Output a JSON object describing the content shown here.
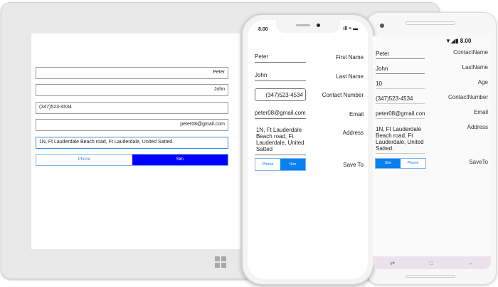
{
  "windows": {
    "fields": [
      "Peter",
      "John",
      "(347)523-4534",
      "peter08@gmail.com",
      "1N, Ft Lauderdale Beach road, Ft Lauderdale, United Satted."
    ],
    "save_to": {
      "options": [
        "Phone",
        "Sim"
      ],
      "selected": "Sim"
    },
    "accent": "#0000ff"
  },
  "ios": {
    "time": "8.00",
    "rows": [
      {
        "label": "First Name",
        "value": "Peter"
      },
      {
        "label": "Last Name",
        "value": "John"
      },
      {
        "label": "Contact Number",
        "value": "(347)523-4534"
      },
      {
        "label": "Email",
        "value": "peter08@gmail.com"
      },
      {
        "label": "Address",
        "value": "1N, Ft Lauderdale Beach road, Ft Lauderdale, United Satted"
      }
    ],
    "save_to": {
      "label": "Save To",
      "options": [
        "Phone",
        "Sim"
      ],
      "selected": "Sim"
    },
    "accent": "#0a7ff0"
  },
  "android": {
    "time": "8.00",
    "rows": [
      {
        "label": "ContactName",
        "value": "Peter"
      },
      {
        "label": "LastName",
        "value": "John"
      },
      {
        "label": "Age",
        "value": "10"
      },
      {
        "label": "ContactNumber",
        "value": "(347)523-4534"
      },
      {
        "label": "Email",
        "value": "peter08@gmail.com"
      },
      {
        "label": "Address",
        "value": "1N, Ft Lauderdale Beach road, Ft Lauderdale, United Satted."
      }
    ],
    "save_to": {
      "label": "SaveTo",
      "options": [
        "Sim",
        "Phone"
      ],
      "selected": "Sim"
    },
    "accent": "#0a7ff0"
  }
}
